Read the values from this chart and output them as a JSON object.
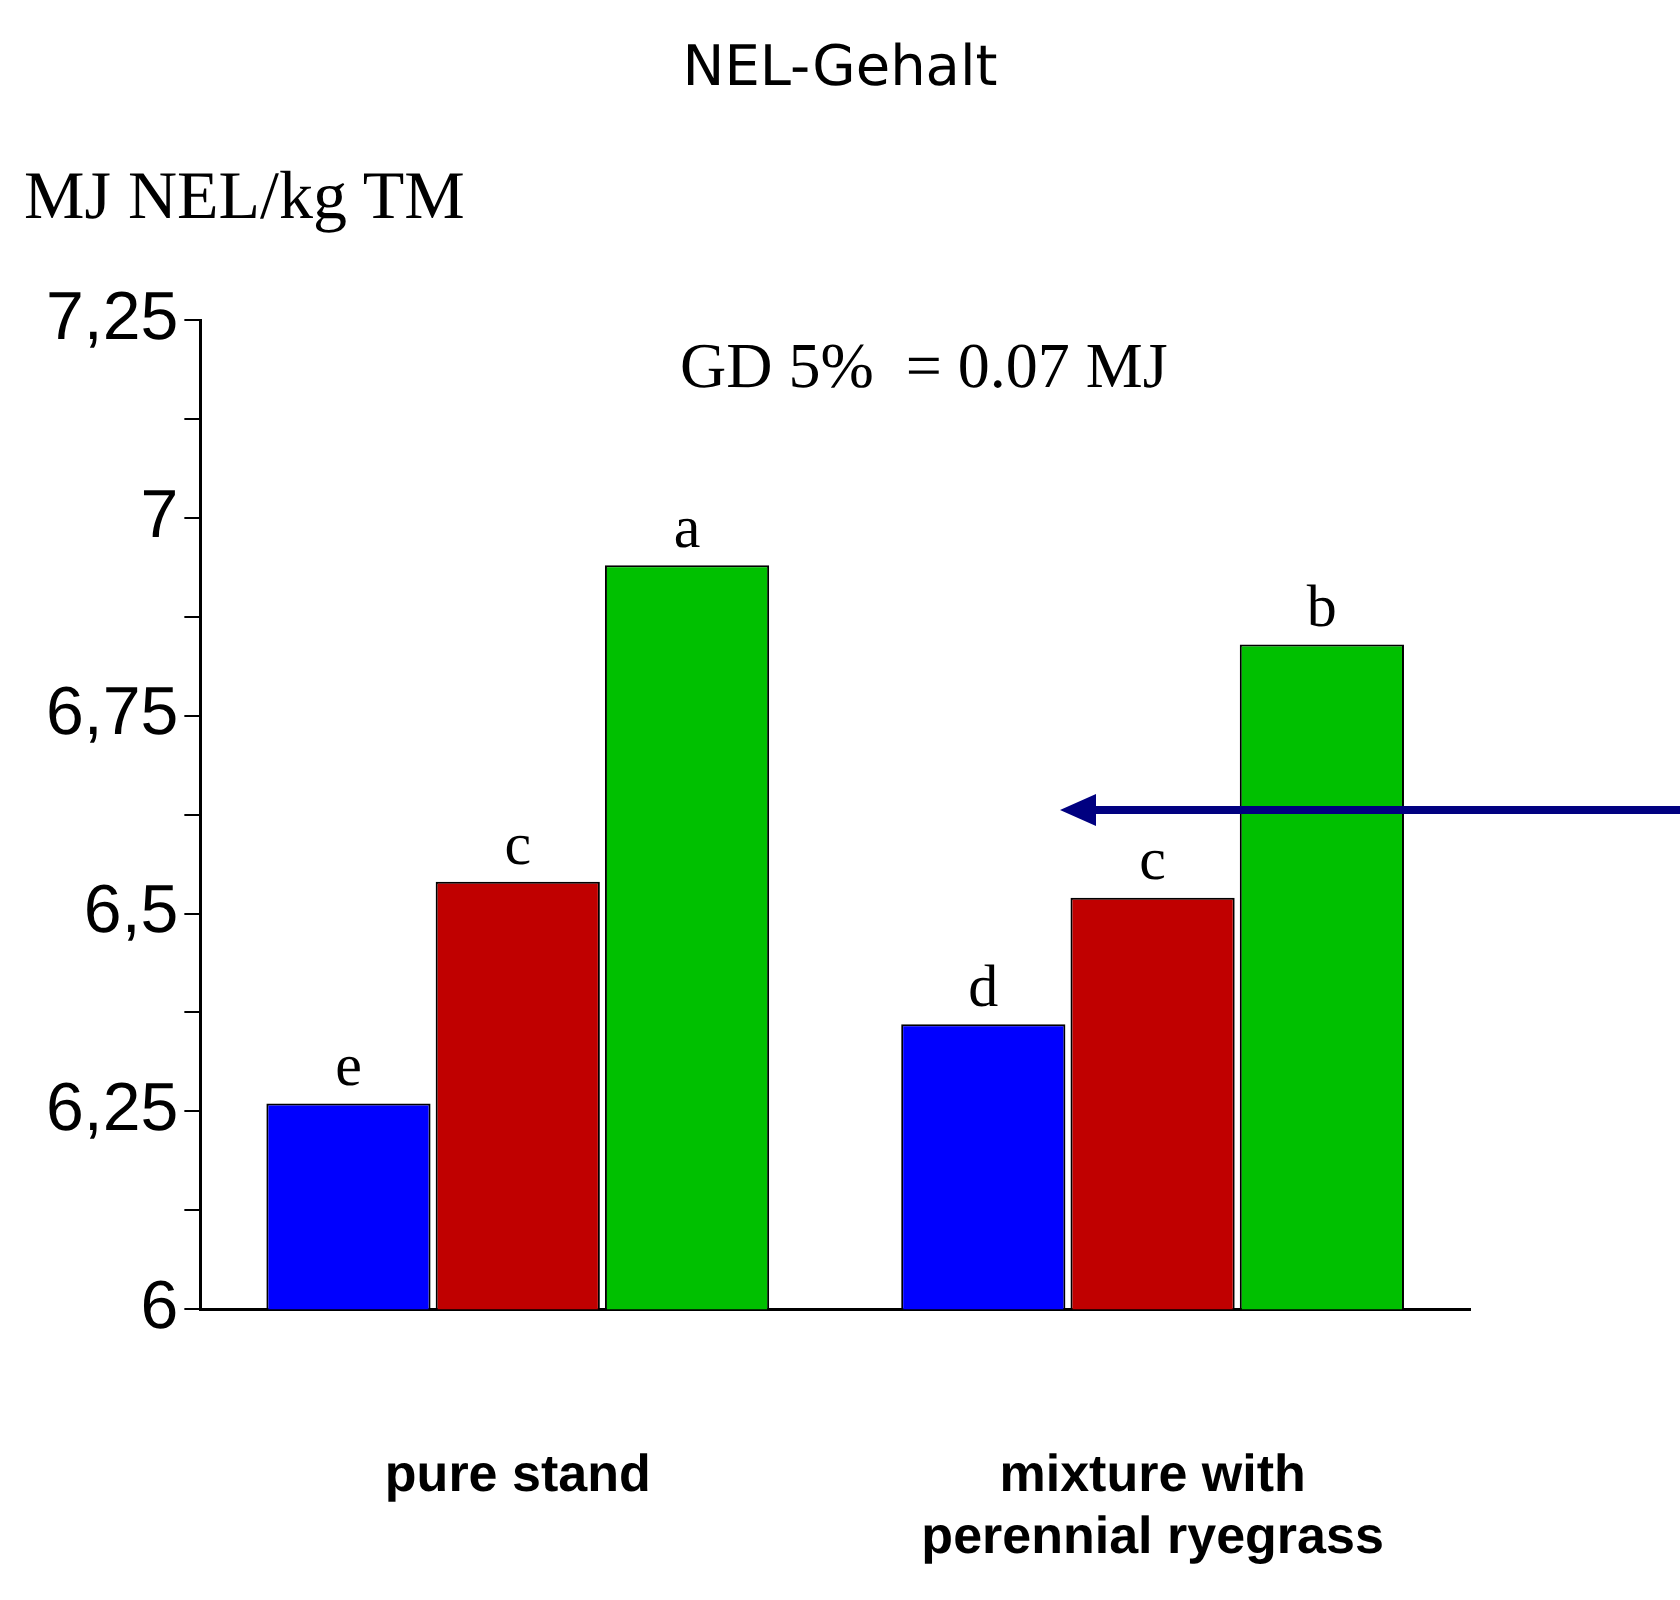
{
  "chart_data": {
    "type": "bar",
    "title": "NEL-Gehalt",
    "ylabel": "MJ NEL/kg TM",
    "annotations": [
      "GD 5%  = 0.07 MJ"
    ],
    "categories": [
      "pure stand",
      "mixture with perennial ryegrass"
    ],
    "series": [
      {
        "color": "#0000ff",
        "values": [
          6.26,
          6.36
        ],
        "value_labels": [
          "e",
          "d"
        ]
      },
      {
        "color": "#c00000",
        "values": [
          6.54,
          6.52
        ],
        "value_labels": [
          "c",
          "c"
        ]
      },
      {
        "color": "#00c000",
        "values": [
          6.94,
          6.84
        ],
        "value_labels": [
          "a",
          "b"
        ]
      }
    ],
    "ylim": [
      6,
      7.25
    ],
    "yticks": [
      6,
      {
        "value": 6.125,
        "label": null
      },
      {
        "value": 6.25,
        "label": "6,25"
      },
      {
        "value": 6.375,
        "label": null
      },
      {
        "value": 6.5,
        "label": "6,5"
      },
      {
        "value": 6.625,
        "label": null
      },
      {
        "value": 6.75,
        "label": "6,75"
      },
      {
        "value": 6.875,
        "label": null
      },
      7,
      {
        "value": 7.125,
        "label": null
      },
      {
        "value": 7.25,
        "label": "7,25"
      }
    ],
    "grid": false,
    "legend": false
  }
}
